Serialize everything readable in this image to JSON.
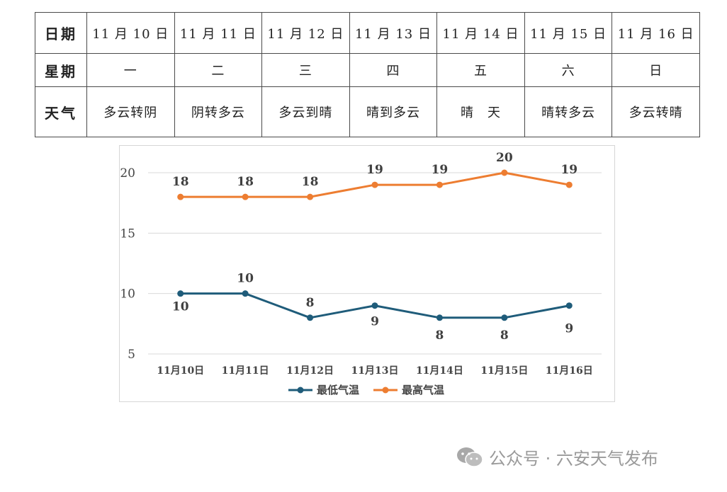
{
  "table": {
    "row_headers": [
      "日期",
      "星期",
      "天气"
    ],
    "dates": [
      "11 月 10 日",
      "11 月 11 日",
      "11 月 12 日",
      "11 月 13 日",
      "11 月 14 日",
      "11 月 15 日",
      "11 月 16 日"
    ],
    "weekdays": [
      "一",
      "二",
      "三",
      "四",
      "五",
      "六",
      "日"
    ],
    "weather": [
      "多云转阴",
      "阴转多云",
      "多云到晴",
      "晴到多云",
      "晴　天",
      "晴转多云",
      "多云转晴"
    ]
  },
  "chart_data": {
    "type": "line",
    "categories": [
      "11月10日",
      "11月11日",
      "11月12日",
      "11月13日",
      "11月14日",
      "11月15日",
      "11月16日"
    ],
    "series": [
      {
        "name": "最低气温",
        "values": [
          10,
          10,
          8,
          9,
          8,
          8,
          9
        ],
        "color": "#1f5c7a"
      },
      {
        "name": "最高气温",
        "values": [
          18,
          18,
          18,
          19,
          19,
          20,
          19
        ],
        "color": "#ed7d31"
      }
    ],
    "ylim": [
      5,
      20
    ],
    "yticks": [
      5,
      10,
      15,
      20
    ],
    "grid": true,
    "legend_position": "bottom"
  },
  "watermark": {
    "text": "公众号 · 六安天气发布",
    "icon": "wechat-icon"
  }
}
